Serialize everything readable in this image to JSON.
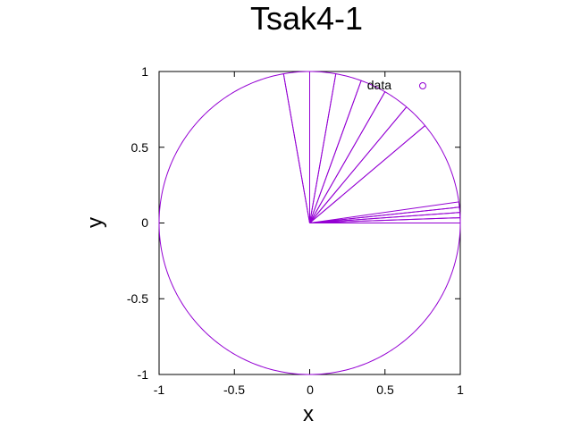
{
  "chart_data": {
    "type": "line",
    "title": "Tsak4-1",
    "xlabel": "x",
    "ylabel": "y",
    "xlim": [
      -1,
      1
    ],
    "ylim": [
      -1,
      1
    ],
    "xticks": [
      "-1",
      "-0.5",
      "0",
      "0.5",
      "1"
    ],
    "yticks": [
      "1",
      "0.5",
      "0",
      "-0.5",
      "-1"
    ],
    "grid": false,
    "legend": "top-right",
    "series": [
      {
        "name": "data",
        "color": "#9400d3",
        "marker": "circle",
        "circle_radius": 1,
        "segments": [
          {
            "theta_deg": [
              0,
              2
            ]
          },
          {
            "theta_deg": [
              2,
              4
            ]
          },
          {
            "theta_deg": [
              4,
              6
            ]
          },
          {
            "theta_deg": [
              6,
              8
            ]
          },
          {
            "theta_deg": [
              40,
              50
            ]
          },
          {
            "theta_deg": [
              50,
              60
            ]
          },
          {
            "theta_deg": [
              60,
              70
            ]
          },
          {
            "theta_deg": [
              70,
              80
            ]
          },
          {
            "theta_deg": [
              80,
              90
            ]
          },
          {
            "theta_deg": [
              90,
              100
            ]
          },
          {
            "theta_deg": [
              100,
              400
            ]
          }
        ]
      }
    ]
  }
}
